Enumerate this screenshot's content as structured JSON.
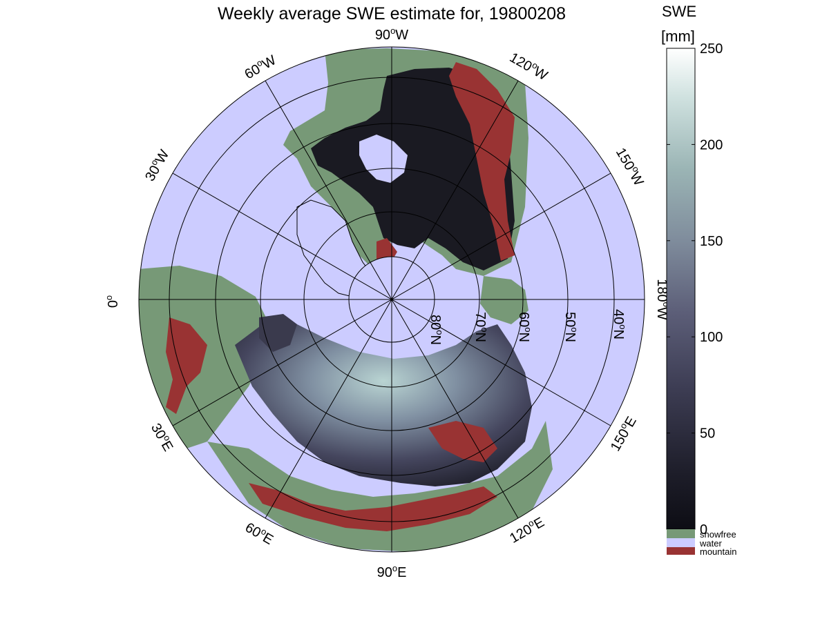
{
  "map": {
    "title": "Weekly average SWE estimate for, 19800208",
    "projection": "north polar stereographic",
    "colors": {
      "water": "#ccccff",
      "snowfree": "#779977",
      "mountain": "#993333",
      "swe_low": "#0d0d14",
      "swe_high": "#ffffff"
    },
    "longitude_labels": [
      {
        "base": "90",
        "sup": "o",
        "dir": "W"
      },
      {
        "base": "120",
        "sup": "o",
        "dir": "W"
      },
      {
        "base": "150",
        "sup": "o",
        "dir": "W"
      },
      {
        "base": "180",
        "sup": "o",
        "dir": "W"
      },
      {
        "base": "150",
        "sup": "o",
        "dir": "E"
      },
      {
        "base": "120",
        "sup": "o",
        "dir": "E"
      },
      {
        "base": "90",
        "sup": "o",
        "dir": "E"
      },
      {
        "base": "60",
        "sup": "o",
        "dir": "E"
      },
      {
        "base": "30",
        "sup": "o",
        "dir": "E"
      },
      {
        "base": "0",
        "sup": "o",
        "dir": ""
      },
      {
        "base": "30",
        "sup": "o",
        "dir": "W"
      },
      {
        "base": "60",
        "sup": "o",
        "dir": "W"
      }
    ],
    "latitude_labels": [
      {
        "base": "80",
        "sup": "o",
        "dir": "N"
      },
      {
        "base": "70",
        "sup": "o",
        "dir": "N"
      },
      {
        "base": "60",
        "sup": "o",
        "dir": "N"
      },
      {
        "base": "50",
        "sup": "o",
        "dir": "N"
      },
      {
        "base": "40",
        "sup": "o",
        "dir": "N"
      }
    ]
  },
  "colorbar": {
    "title_line1": "SWE",
    "title_line2": "[mm]",
    "ticks": [
      "0",
      "50",
      "100",
      "150",
      "200",
      "250"
    ],
    "range": [
      0,
      250
    ],
    "legend": [
      {
        "label": "snowfree",
        "color": "#779977"
      },
      {
        "label": "water",
        "color": "#ccccff"
      },
      {
        "label": "mountain",
        "color": "#993333"
      }
    ]
  }
}
